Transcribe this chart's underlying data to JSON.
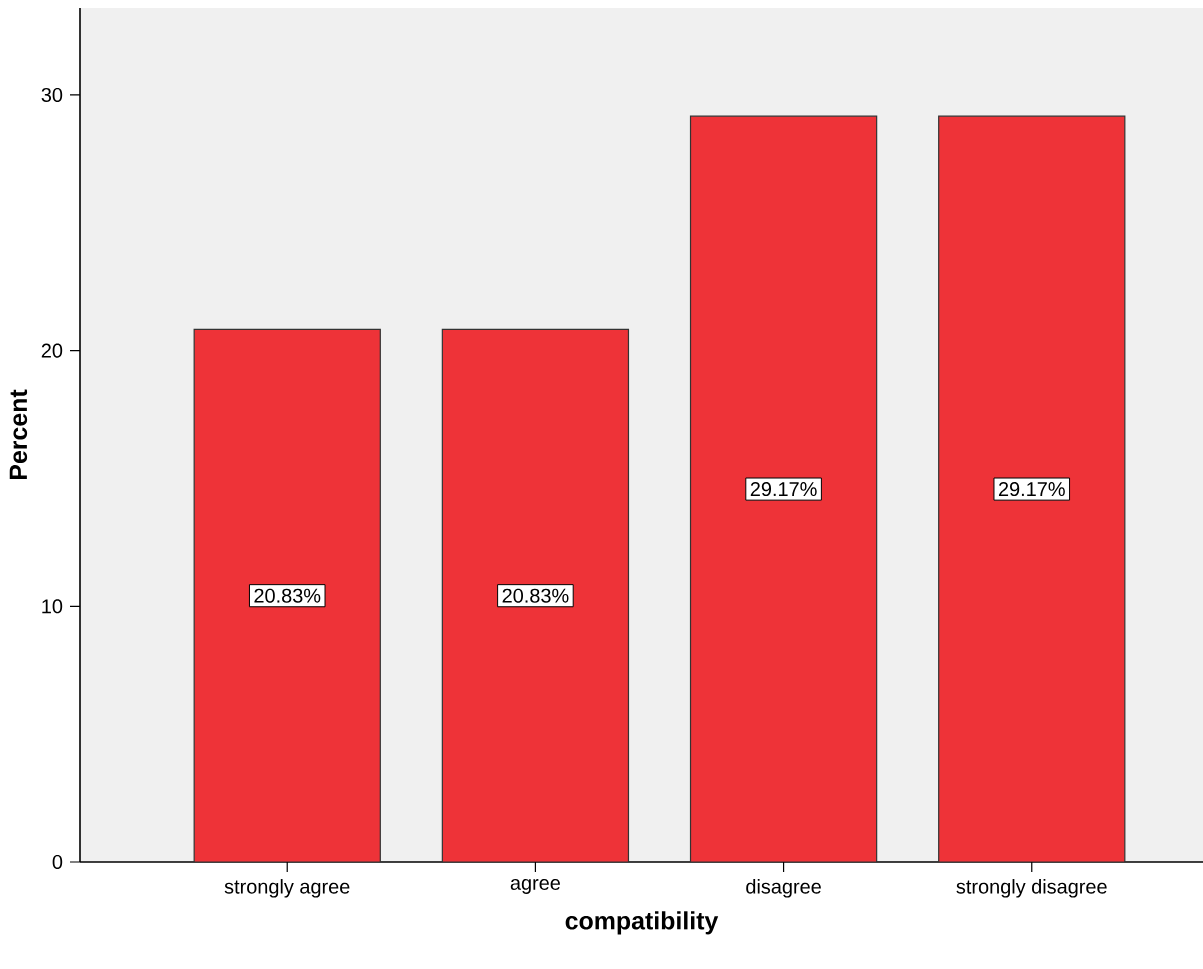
{
  "chart_data": {
    "type": "bar",
    "xlabel": "compatibility",
    "ylabel": "Percent",
    "categories": [
      "strongly agree",
      "agree",
      "disagree",
      "strongly disagree"
    ],
    "values": [
      20.83,
      20.83,
      29.17,
      29.17
    ],
    "value_labels": [
      "20.83%",
      "20.83%",
      "29.17%",
      "29.17%"
    ],
    "color": "#ee3338",
    "ylim": [
      0,
      33.4
    ],
    "yticks": [
      0,
      10,
      20,
      30
    ]
  }
}
